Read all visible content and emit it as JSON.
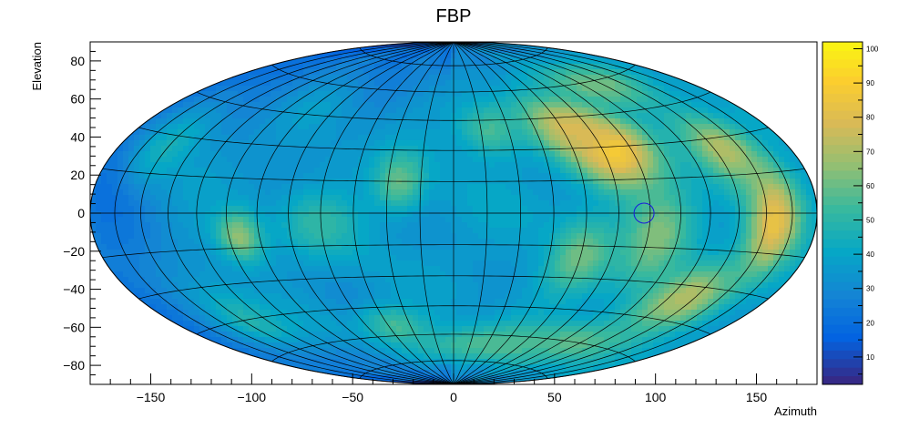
{
  "chart_data": {
    "type": "heatmap",
    "projection": "aitoff-hammer (sky map)",
    "title": "FBP",
    "xlabel": "Azimuth",
    "ylabel": "Elevation",
    "xlim": [
      -180,
      180
    ],
    "ylim": [
      -90,
      90
    ],
    "x_ticks": [
      -150,
      -100,
      -50,
      0,
      50,
      100,
      150
    ],
    "y_ticks": [
      -80,
      -60,
      -40,
      -20,
      0,
      20,
      40,
      60,
      80
    ],
    "x_tick_labels": [
      "−150",
      "−100",
      "−50",
      "0",
      "50",
      "100",
      "150"
    ],
    "y_tick_labels": [
      "−80",
      "−60",
      "−40",
      "−20",
      "0",
      "20",
      "40",
      "60",
      "80"
    ],
    "grid": true,
    "grid_meridian_step_deg": 15,
    "grid_parallel_step_deg": 15,
    "colorbar": {
      "min": 2,
      "max": 102,
      "ticks": [
        10,
        20,
        30,
        40,
        50,
        60,
        70,
        80,
        90,
        100
      ],
      "tick_labels": [
        "10",
        "20",
        "30",
        "40",
        "50",
        "60",
        "70",
        "80",
        "90",
        "100"
      ],
      "palette": [
        "#352a87",
        "#0363e1",
        "#1485d4",
        "#06a7c6",
        "#38b99e",
        "#92bf73",
        "#d9ba56",
        "#fcce2e",
        "#f9fb0e"
      ]
    },
    "hotspots": [
      {
        "az": 80,
        "el": 28,
        "value": 92,
        "sigma_az": 14,
        "sigma_el": 12
      },
      {
        "az": 65,
        "el": 40,
        "value": 78,
        "sigma_az": 12,
        "sigma_el": 10
      },
      {
        "az": 155,
        "el": -3,
        "value": 84,
        "sigma_az": 10,
        "sigma_el": 14
      },
      {
        "az": 140,
        "el": 25,
        "value": 72,
        "sigma_az": 12,
        "sigma_el": 10
      },
      {
        "az": 130,
        "el": -35,
        "value": 72,
        "sigma_az": 14,
        "sigma_el": 10
      },
      {
        "az": 95,
        "el": -10,
        "value": 64,
        "sigma_az": 12,
        "sigma_el": 15
      },
      {
        "az": 60,
        "el": -20,
        "value": 62,
        "sigma_az": 10,
        "sigma_el": 12
      },
      {
        "az": -100,
        "el": -10,
        "value": 66,
        "sigma_az": 8,
        "sigma_el": 8
      },
      {
        "az": -25,
        "el": 15,
        "value": 60,
        "sigma_az": 8,
        "sigma_el": 10
      },
      {
        "az": -60,
        "el": -5,
        "value": 52,
        "sigma_az": 12,
        "sigma_el": 10
      },
      {
        "az": -40,
        "el": -55,
        "value": 55,
        "sigma_az": 10,
        "sigma_el": 8
      },
      {
        "az": 20,
        "el": 40,
        "value": 55,
        "sigma_az": 10,
        "sigma_el": 10
      },
      {
        "az": 30,
        "el": -65,
        "value": 56,
        "sigma_az": 20,
        "sigma_el": 8
      },
      {
        "az": 100,
        "el": -60,
        "value": 58,
        "sigma_az": 20,
        "sigma_el": 8
      },
      {
        "az": 115,
        "el": 58,
        "value": 62,
        "sigma_az": 16,
        "sigma_el": 8
      },
      {
        "az": -130,
        "el": -45,
        "value": 48,
        "sigma_az": 12,
        "sigma_el": 10
      },
      {
        "az": -150,
        "el": 25,
        "value": 45,
        "sigma_az": 12,
        "sigma_el": 10
      }
    ],
    "markers": [
      {
        "name": "circle-marker",
        "az": 87,
        "el": 0,
        "color": "#1a1adb"
      }
    ]
  }
}
